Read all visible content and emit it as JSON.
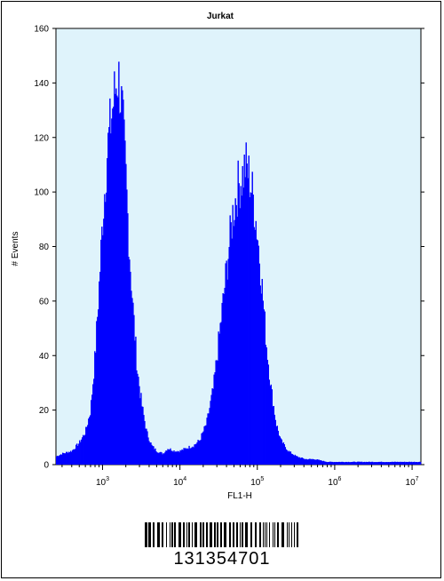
{
  "chart_data": {
    "type": "histogram",
    "title": "Jurkat",
    "xlabel": "FL1-H",
    "ylabel": "# Events",
    "xscale": "log",
    "xlim": [
      250,
      13000000
    ],
    "ylim": [
      0,
      160
    ],
    "y_ticks": [
      0,
      20,
      40,
      60,
      80,
      100,
      120,
      140,
      160
    ],
    "x_tick_labels": [
      {
        "base": "10",
        "exp": "3",
        "value": 1000
      },
      {
        "base": "10",
        "exp": "4",
        "value": 10000
      },
      {
        "base": "10",
        "exp": "5",
        "value": 100000
      },
      {
        "base": "10",
        "exp": "6",
        "value": 1000000
      },
      {
        "base": "10",
        "exp": "7",
        "value": 10000000
      }
    ],
    "fill_color": "#0000ff",
    "background_color": "#dff3fb",
    "series": [
      {
        "peaks": [
          {
            "center": 1600,
            "max_count": 143
          },
          {
            "center": 72000,
            "max_count": 110
          }
        ],
        "profile": [
          [
            250,
            3
          ],
          [
            300,
            4
          ],
          [
            400,
            5
          ],
          [
            500,
            8
          ],
          [
            600,
            12
          ],
          [
            700,
            20
          ],
          [
            800,
            40
          ],
          [
            900,
            65
          ],
          [
            1000,
            90
          ],
          [
            1150,
            115
          ],
          [
            1300,
            128
          ],
          [
            1450,
            137
          ],
          [
            1550,
            143
          ],
          [
            1650,
            140
          ],
          [
            1800,
            128
          ],
          [
            2000,
            105
          ],
          [
            2200,
            80
          ],
          [
            2500,
            55
          ],
          [
            2800,
            35
          ],
          [
            3200,
            22
          ],
          [
            3700,
            12
          ],
          [
            4300,
            7
          ],
          [
            5000,
            5
          ],
          [
            6000,
            4
          ],
          [
            7000,
            6
          ],
          [
            8500,
            5
          ],
          [
            10000,
            5
          ],
          [
            12000,
            6
          ],
          [
            15000,
            7
          ],
          [
            18000,
            9
          ],
          [
            22000,
            15
          ],
          [
            27000,
            28
          ],
          [
            33000,
            50
          ],
          [
            40000,
            72
          ],
          [
            48000,
            92
          ],
          [
            56000,
            102
          ],
          [
            64000,
            106
          ],
          [
            70000,
            110
          ],
          [
            78000,
            106
          ],
          [
            88000,
            98
          ],
          [
            100000,
            85
          ],
          [
            115000,
            65
          ],
          [
            130000,
            45
          ],
          [
            150000,
            28
          ],
          [
            175000,
            15
          ],
          [
            200000,
            9
          ],
          [
            250000,
            5
          ],
          [
            320000,
            3
          ],
          [
            420000,
            2
          ],
          [
            550000,
            2
          ],
          [
            800000,
            1
          ],
          [
            1200000,
            1
          ],
          [
            3000000,
            1
          ],
          [
            8000000,
            1
          ],
          [
            13000000,
            1
          ]
        ]
      }
    ]
  },
  "barcode": {
    "number": "131354701"
  }
}
